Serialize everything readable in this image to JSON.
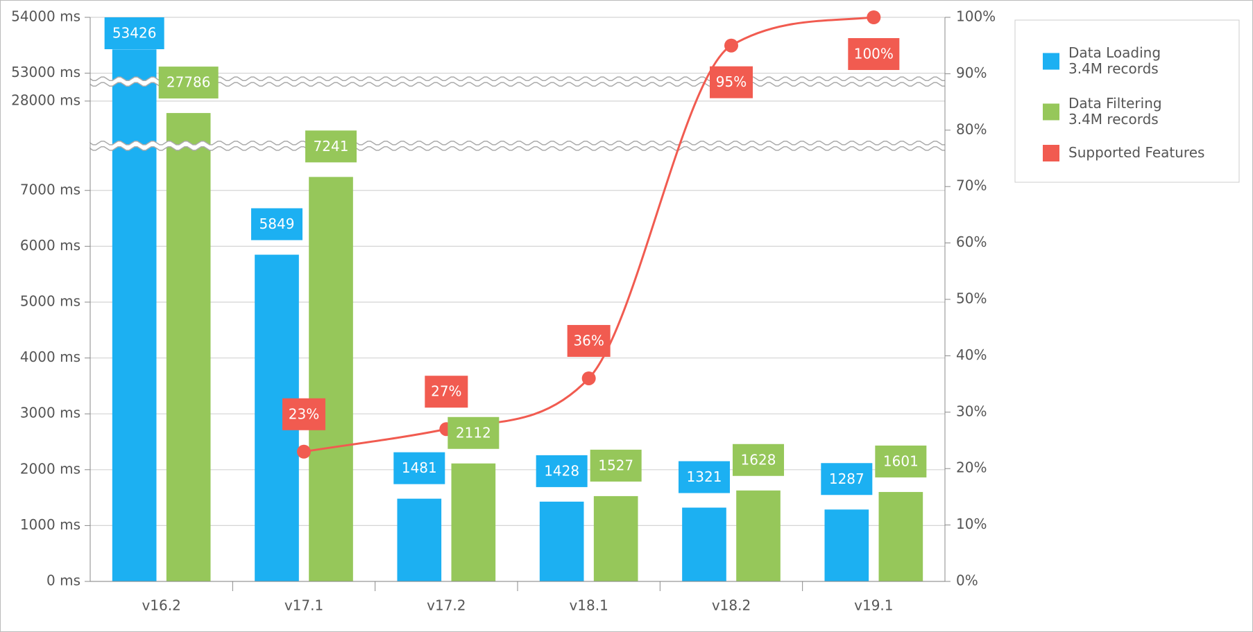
{
  "chart_data": {
    "type": "bar",
    "categories": [
      "v16.2",
      "v17.1",
      "v17.2",
      "v18.1",
      "v18.2",
      "v19.1"
    ],
    "series": [
      {
        "name": "Data Loading\n3.4M records",
        "color": "#1cb0f2",
        "values": [
          53426,
          5849,
          1481,
          1428,
          1321,
          1287
        ]
      },
      {
        "name": "Data Filtering\n3.4M records",
        "color": "#96c75a",
        "values": [
          27786,
          7241,
          2112,
          1527,
          1628,
          1601
        ]
      },
      {
        "name": "Supported Features",
        "type": "line",
        "axis": "y2",
        "color": "#f15b50",
        "values": [
          null,
          23,
          27,
          36,
          95,
          100
        ],
        "value_labels": [
          null,
          "23%",
          "27%",
          "36%",
          "95%",
          "100%"
        ]
      }
    ],
    "ylim": [
      0,
      54000
    ],
    "yticks": [
      {
        "value": 0,
        "label": "0 ms"
      },
      {
        "value": 1000,
        "label": "1000 ms"
      },
      {
        "value": 2000,
        "label": "2000 ms"
      },
      {
        "value": 3000,
        "label": "3000 ms"
      },
      {
        "value": 4000,
        "label": "4000 ms"
      },
      {
        "value": 5000,
        "label": "5000 ms"
      },
      {
        "value": 6000,
        "label": "6000 ms"
      },
      {
        "value": 7000,
        "label": "7000 ms"
      },
      {
        "value": 28000,
        "label": "28000 ms"
      },
      {
        "value": 53000,
        "label": "53000 ms"
      },
      {
        "value": 54000,
        "label": "54000 ms"
      }
    ],
    "scale_breaks": [
      [
        7750,
        27250
      ],
      [
        28300,
        52900
      ]
    ],
    "y2lim": [
      0,
      100
    ],
    "y2ticks": [
      {
        "value": 0,
        "label": "0%"
      },
      {
        "value": 10,
        "label": "10%"
      },
      {
        "value": 20,
        "label": "20%"
      },
      {
        "value": 30,
        "label": "30%"
      },
      {
        "value": 40,
        "label": "40%"
      },
      {
        "value": 50,
        "label": "50%"
      },
      {
        "value": 60,
        "label": "60%"
      },
      {
        "value": 70,
        "label": "70%"
      },
      {
        "value": 80,
        "label": "80%"
      },
      {
        "value": 90,
        "label": "90%"
      },
      {
        "value": 100,
        "label": "100%"
      }
    ],
    "grid": true,
    "legend": "right"
  }
}
